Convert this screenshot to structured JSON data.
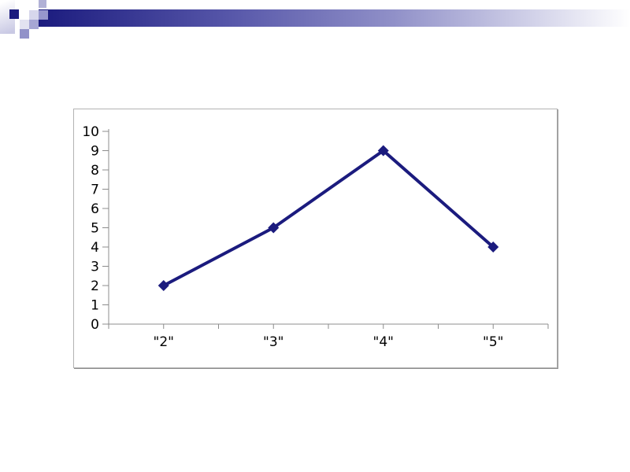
{
  "slide": {
    "background": "#ffffff"
  },
  "decoration": {
    "style": "powerpoint-pixel-header",
    "colors": {
      "navy": "#1b1b7e",
      "lav_light": "#c9c9e4",
      "lav_mid": "#b1b1d6",
      "lav_mid2": "#a6a6d4",
      "lav_pale": "#d7d7ec",
      "lav_faint": "#e2e2f1",
      "lav_deep": "#9797cd",
      "lav_deep2": "#9292c9"
    }
  },
  "chart_data": {
    "type": "line",
    "categories": [
      "\"2\"",
      "\"3\"",
      "\"4\"",
      "\"5\""
    ],
    "values": [
      2,
      5,
      9,
      4
    ],
    "series_name": "",
    "title": "",
    "xlabel": "",
    "ylabel": "",
    "ylim": [
      0,
      10
    ],
    "ytick_step": 1,
    "ytick_labels": [
      "0",
      "1",
      "2",
      "3",
      "4",
      "5",
      "6",
      "7",
      "8",
      "9",
      "10"
    ],
    "grid": false,
    "legend": "none",
    "plot_background": "#ffffff",
    "line_color": "#1b1b7e",
    "line_width": 4,
    "marker": "diamond",
    "marker_size": 14,
    "axis_color": "#8c8c8c",
    "tick_label_color": "#000000",
    "tick_label_size": 17
  }
}
